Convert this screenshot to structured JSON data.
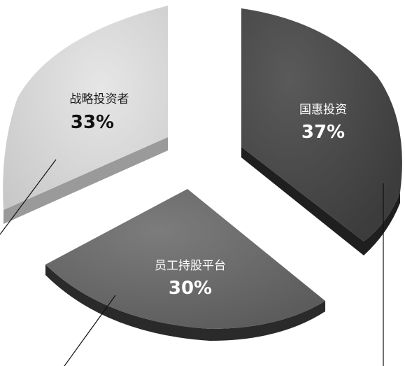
{
  "chart_data": {
    "type": "pie",
    "style": "exploded-3d",
    "categories": [
      "国惠投资",
      "员工持股平台",
      "战略投资者"
    ],
    "values": [
      37,
      30,
      33
    ],
    "value_labels": [
      "37%",
      "30%",
      "33%"
    ],
    "colors": [
      "#4a4a4a",
      "#6c6c6c",
      "#d6d6d6"
    ],
    "side_colors": [
      "#1f1f1f",
      "#2a2a2a",
      "#9a9a9a"
    ],
    "label_colors": [
      "#ffffff",
      "#ffffff",
      "#1a1a1a"
    ]
  }
}
